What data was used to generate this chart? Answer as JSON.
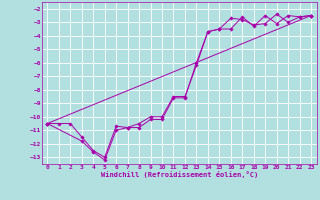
{
  "xlabel": "Windchill (Refroidissement éolien,°C)",
  "xlim": [
    -0.5,
    23.5
  ],
  "ylim": [
    -13.5,
    -1.5
  ],
  "yticks": [
    -13,
    -12,
    -11,
    -10,
    -9,
    -8,
    -7,
    -6,
    -5,
    -4,
    -3,
    -2
  ],
  "xticks": [
    0,
    1,
    2,
    3,
    4,
    5,
    6,
    7,
    8,
    9,
    10,
    11,
    12,
    13,
    14,
    15,
    16,
    17,
    18,
    19,
    20,
    21,
    22,
    23
  ],
  "bg_color": "#b2e0e0",
  "line_color": "#aa00aa",
  "grid_color": "#ffffff",
  "line1_x": [
    0,
    1,
    2,
    3,
    4,
    5,
    6,
    7,
    8,
    9,
    10,
    11,
    12,
    13,
    14,
    15,
    16,
    17,
    18,
    19,
    20,
    21,
    22,
    23
  ],
  "line1_y": [
    -10.5,
    -10.5,
    -10.5,
    -11.5,
    -12.5,
    -13.0,
    -10.7,
    -10.8,
    -10.8,
    -10.2,
    -10.2,
    -8.6,
    -8.6,
    -6.0,
    -3.7,
    -3.5,
    -3.5,
    -2.6,
    -3.3,
    -2.5,
    -3.1,
    -2.5,
    -2.6,
    -2.5
  ],
  "line2_x": [
    0,
    3,
    4,
    5,
    6,
    7,
    8,
    9,
    10,
    11,
    12,
    13,
    14,
    15,
    16,
    17,
    18,
    19,
    20,
    21,
    22,
    23
  ],
  "line2_y": [
    -10.5,
    -11.8,
    -12.6,
    -13.2,
    -11.0,
    -10.8,
    -10.5,
    -10.0,
    -10.0,
    -8.5,
    -8.5,
    -6.2,
    -3.7,
    -3.5,
    -2.7,
    -2.8,
    -3.2,
    -3.1,
    -2.4,
    -3.0,
    -2.6,
    -2.5
  ],
  "line3_x": [
    0,
    23
  ],
  "line3_y": [
    -10.5,
    -2.5
  ],
  "tick_fontsize": 4.5,
  "xlabel_fontsize": 5.0,
  "lw": 0.7,
  "ms": 1.8
}
